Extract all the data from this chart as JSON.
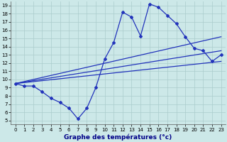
{
  "xlabel": "Graphe des températures (°c)",
  "xlim": [
    -0.5,
    23.5
  ],
  "ylim": [
    4.5,
    19.5
  ],
  "yticks": [
    5,
    6,
    7,
    8,
    9,
    10,
    11,
    12,
    13,
    14,
    15,
    16,
    17,
    18,
    19
  ],
  "xticks": [
    0,
    1,
    2,
    3,
    4,
    5,
    6,
    7,
    8,
    9,
    10,
    11,
    12,
    13,
    14,
    15,
    16,
    17,
    18,
    19,
    20,
    21,
    22,
    23
  ],
  "line_color": "#2233bb",
  "bg_color": "#cce8e8",
  "grid_color": "#aacccc",
  "line1_x": [
    0,
    1,
    2,
    3,
    4,
    5,
    6,
    7,
    8,
    9,
    10,
    11,
    12,
    13,
    14,
    15,
    16,
    17,
    18,
    19,
    20,
    21,
    22,
    23
  ],
  "line1_y": [
    9.5,
    9.2,
    9.2,
    8.5,
    7.7,
    7.2,
    6.5,
    5.2,
    6.5,
    9.0,
    12.5,
    14.5,
    18.2,
    17.6,
    15.3,
    19.2,
    18.8,
    17.8,
    16.8,
    15.2,
    13.8,
    13.5,
    12.2,
    13.0
  ],
  "line2_x": [
    0,
    23
  ],
  "line2_y": [
    9.5,
    15.2
  ],
  "line3_x": [
    0,
    23
  ],
  "line3_y": [
    9.5,
    13.5
  ],
  "line4_x": [
    0,
    23
  ],
  "line4_y": [
    9.5,
    12.2
  ],
  "marker_size": 2.0,
  "linewidth": 0.9,
  "tick_fontsize": 5.0,
  "xlabel_fontsize": 6.5
}
